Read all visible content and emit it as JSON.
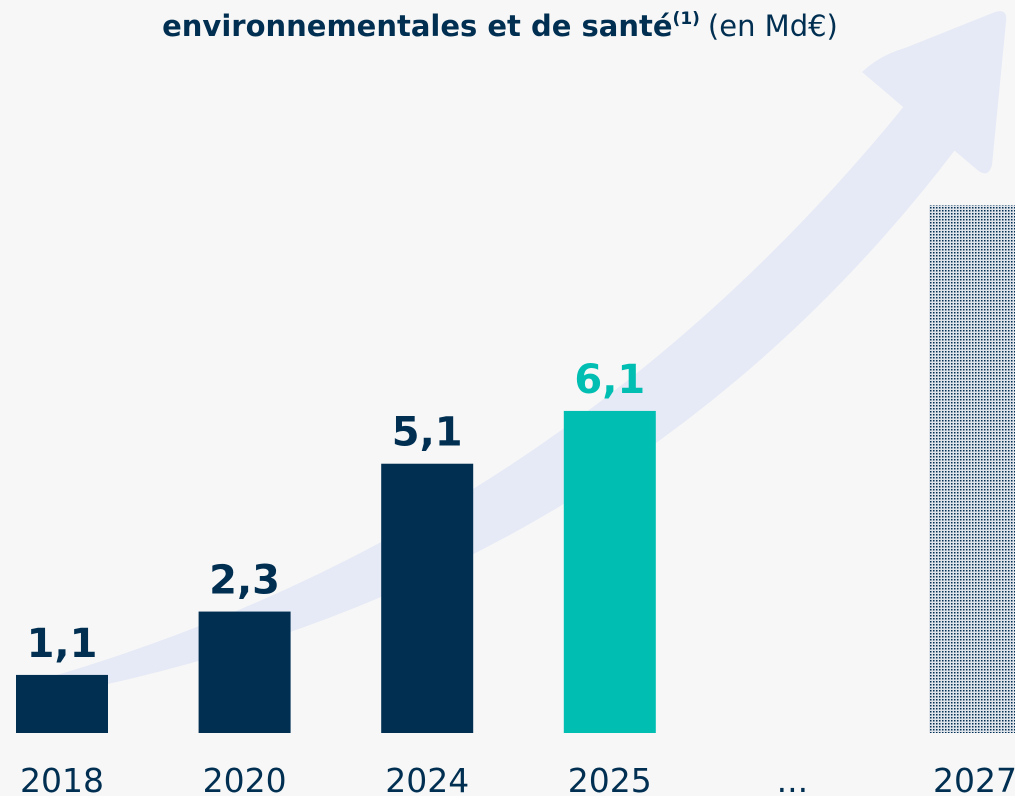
{
  "chart_data": {
    "type": "bar",
    "title": "environnementales et de santé",
    "title_note": "(1)",
    "title_unit": "(en Md€)",
    "categories": [
      "2018",
      "2020",
      "2024",
      "2025",
      "...",
      "2027"
    ],
    "values": [
      1.1,
      2.3,
      5.1,
      6.1,
      null,
      10
    ],
    "value_labels": [
      "1,1",
      "2,3",
      "5,1",
      "6,1",
      null,
      null
    ],
    "colors": [
      "#002f52",
      "#002f52",
      "#002f52",
      "#00bfb2",
      null,
      "#002f52"
    ],
    "styles": [
      "solid",
      "solid",
      "solid",
      "solid",
      null,
      "dotted"
    ],
    "ylim": [
      0,
      10
    ],
    "grid": false
  }
}
